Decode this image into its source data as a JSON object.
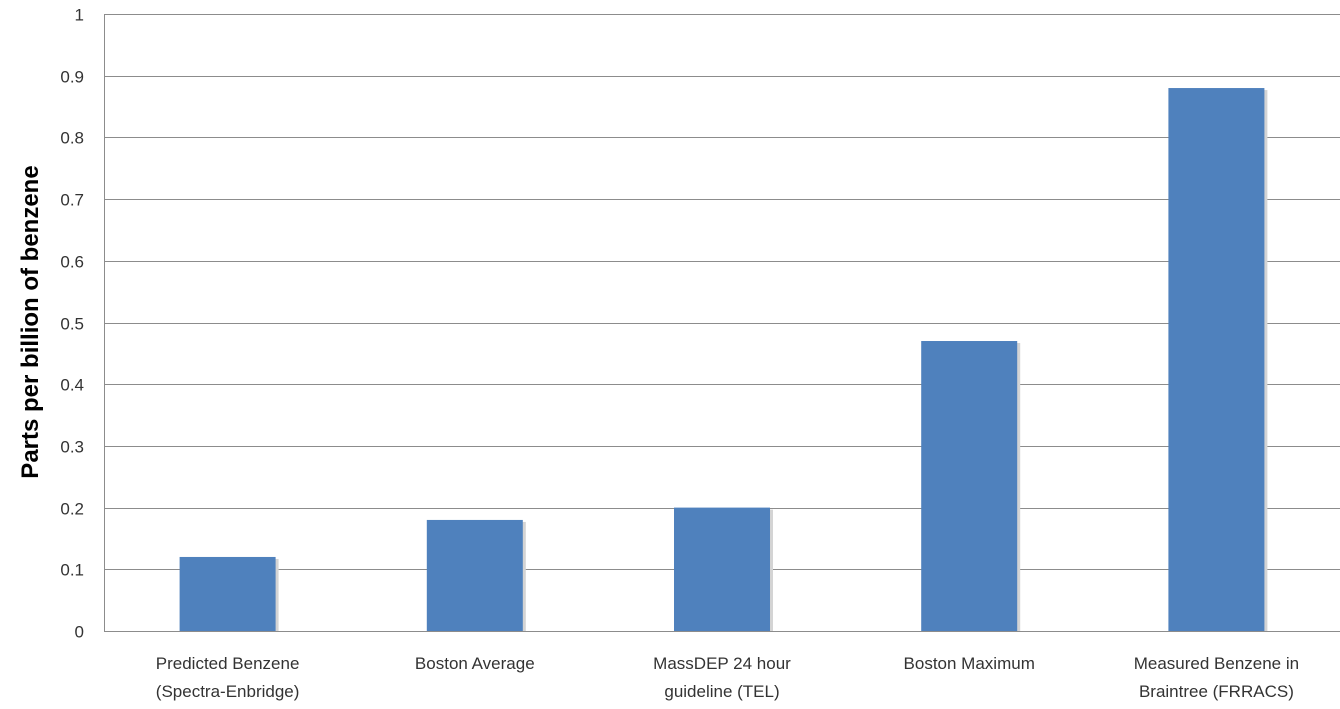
{
  "chart_data": {
    "type": "bar",
    "title": "",
    "xlabel": "",
    "ylabel": "Parts per billion of benzene",
    "categories": [
      [
        "Predicted Benzene",
        "(Spectra-Enbridge)"
      ],
      [
        "Boston Average"
      ],
      [
        "MassDEP 24 hour",
        "guideline (TEL)"
      ],
      [
        "Boston Maximum"
      ],
      [
        "Measured Benzene in",
        "Braintree (FRRACS)"
      ]
    ],
    "values": [
      0.12,
      0.18,
      0.2,
      0.47,
      0.88
    ],
    "ylim": [
      0,
      1
    ],
    "yticks": [
      0,
      0.1,
      0.2,
      0.3,
      0.4,
      0.5,
      0.6,
      0.7,
      0.8,
      0.9,
      1
    ],
    "ytick_labels": [
      "0",
      "0.1",
      "0.2",
      "0.3",
      "0.4",
      "0.5",
      "0.6",
      "0.7",
      "0.8",
      "0.9",
      "1"
    ],
    "grid": true,
    "legend": "none",
    "bar_color": "#4f81bd",
    "grid_color": "#8c8c8c",
    "text_color": "#333333"
  }
}
